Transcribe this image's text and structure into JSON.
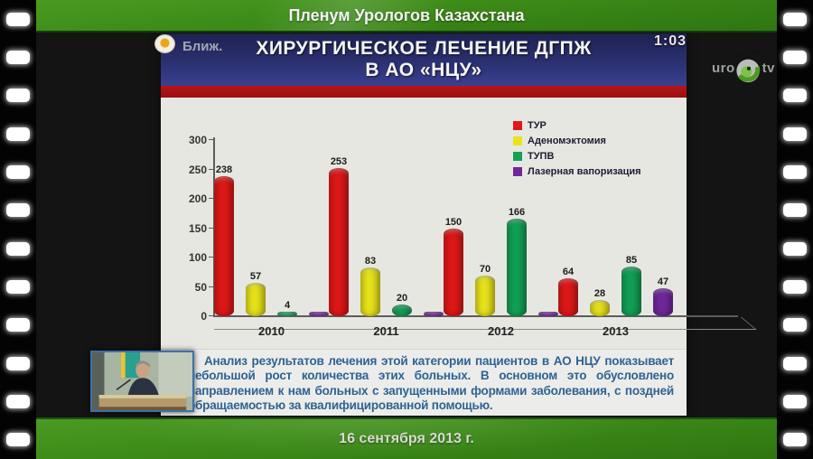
{
  "header": {
    "title": "Пленум Урологов Казахстана"
  },
  "footer": {
    "date": "16 сентября 2013 г."
  },
  "player": {
    "timestamp": "1:03",
    "overlay_label": "Ближ.",
    "logo": {
      "prefix": "uro",
      "suffix": "tv"
    }
  },
  "slide": {
    "title_line1": "ХИРУРГИЧЕСКОЕ ЛЕЧЕНИЕ ДГПЖ",
    "title_line2": "В АО «НЦУ»",
    "body_text": "Анализ результатов лечения этой категории пациентов в АО НЦУ показывает небольшой рост количества этих больных. В основном это обусловлено направлением к нам больных с запущенными формами заболевания, с поздней обращаемостью за квалифицированной помощью."
  },
  "colors": {
    "header_green": "#3c8a18",
    "title_blue": "#2b3070",
    "stripe_red": "#a81216",
    "body_text_blue": "#2f6292"
  },
  "chart_data": {
    "type": "bar",
    "title": "",
    "xlabel": "",
    "ylabel": "",
    "categories": [
      "2010",
      "2011",
      "2012",
      "2013"
    ],
    "series": [
      {
        "name": "ТУР",
        "color": "#e01818",
        "values": [
          238,
          253,
          150,
          64
        ]
      },
      {
        "name": "Аденомэктомия",
        "color": "#e9e41a",
        "values": [
          57,
          83,
          70,
          28
        ]
      },
      {
        "name": "ТУПВ",
        "color": "#12a156",
        "values": [
          4,
          20,
          166,
          85
        ]
      },
      {
        "name": "Лазерная вапоризация",
        "color": "#71279c",
        "values": [
          0,
          0,
          0,
          47
        ]
      }
    ],
    "ylim": [
      0,
      300
    ],
    "yticks": [
      0,
      50,
      100,
      150,
      200,
      250,
      300
    ],
    "grid": false,
    "legend_position": "top-right",
    "style": "3d-cylinder"
  }
}
